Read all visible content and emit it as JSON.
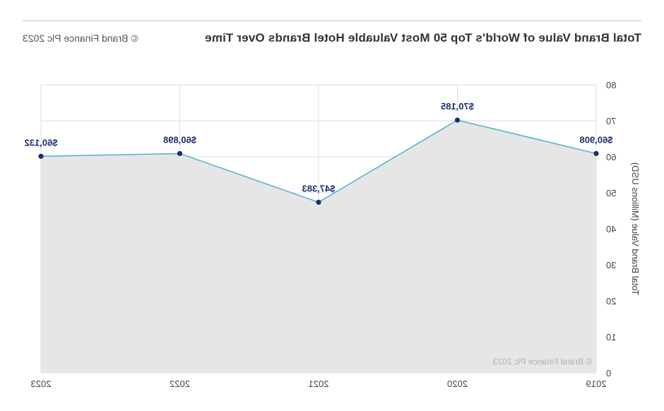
{
  "header": {
    "title": "Total Brand Value of World's Top 50 Most Valuable Hotel Brands Over Time",
    "copyright": "© Brand Finance Plc 2023"
  },
  "chart_data": {
    "type": "area",
    "title": "Total Brand Value of World's Top 50 Most Valuable Hotel Brands Over Time",
    "xlabel": "",
    "ylabel": "Total Brand Value (Millions USD)",
    "categories": [
      "2019",
      "2020",
      "2021",
      "2022",
      "2023"
    ],
    "series": [
      {
        "values": [
          60.908,
          70.185,
          47.383,
          60.898,
          60.132
        ],
        "labels": [
          "$60,908",
          "$70,185",
          "$47,383",
          "$60,898",
          "$60,132"
        ]
      }
    ],
    "ylim": [
      0,
      80
    ],
    "yticks": [
      "0",
      "10",
      "20",
      "30",
      "40",
      "50",
      "60",
      "70",
      "80"
    ],
    "grid": true,
    "watermark": "© Brand Finance Plc 2023",
    "colors": {
      "line": "#5ab4d0",
      "area": "#e6e6e6",
      "marker": "#1b2f6e",
      "label": "#1b2f6e",
      "grid": "#dddddd"
    }
  }
}
